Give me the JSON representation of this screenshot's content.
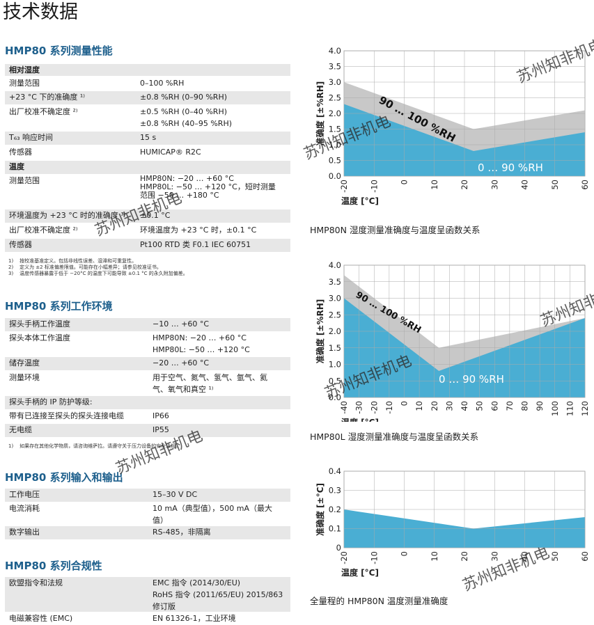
{
  "page_title": "技术数据",
  "sections": {
    "performance": {
      "title": "HMP80 系列测量性能",
      "rh_head": "相对湿度",
      "rh_range_k": "测量范围",
      "rh_range_v": "0–100 %RH",
      "rh_acc_k": "+23 °C 下的准确度 ¹⁾",
      "rh_acc_v": "±0.8 %RH (0–90 %RH)",
      "rh_cal_k": "出厂校准不确定度 ²⁾",
      "rh_cal_v": "±0.5 %RH (0–40 %RH)\n±0.8 %RH (40–95 %RH)",
      "rh_t63_k": "T₆₃ 响应时间",
      "rh_t63_v": "15 s",
      "rh_sensor_k": "传感器",
      "rh_sensor_v": "HUMICAP® R2C",
      "t_head": "温度",
      "t_range_k": "测量范围",
      "t_range_v": "HMP80N: −20 … +60 °C\nHMP80L: −50 … +120 °C，短时测量\n范围 −50 … +180 °C",
      "t_acc_k": "环境温度为 +23 °C 时的准确度 ³⁾",
      "t_acc_v": "±0.1 °C",
      "t_cal_k": "出厂校准不确定度 ²⁾",
      "t_cal_v": "环境温度为 +23 °C 时，±0.1 °C",
      "t_sensor_k": "传感器",
      "t_sensor_v": "Pt100 RTD 类 F0.1 IEC 60751",
      "notes": "1)    按校准基准定义。包括非线性误差、湿滞和可重复性。\n2)    定义为 ±2 标准偏差限值。可能存在小幅差异；请参见校准证书。\n3)    温度传感器暴露于低于 −20°C 的温度下可能导致 ±0.1 °C 的永久附加偏差。"
    },
    "environment": {
      "title": "HMP80 系列工作环境",
      "handle_k": "探头手柄工作温度",
      "handle_v": "−10 … +60 °C",
      "body_k": "探头本体工作温度",
      "body_v": "HMP80N: −20 … +60 °C\nHMP80L: −50 … +120 °C",
      "storage_k": "储存温度",
      "storage_v": "−20 … +60 °C",
      "env_k": "测量环境",
      "env_v": "用于空气、氮气、氢气、氩气、氦\n气、氧气和真空 ¹⁾",
      "ip_k": "探头手柄的 IP 防护等级:",
      "ip_cable_k": "带有已连接至探头的探头连接电缆",
      "ip_cable_v": "IP66",
      "ip_nocable_k": "无电缆",
      "ip_nocable_v": "IP55",
      "note": "1)    如果存在其他化学物质，请咨询维萨拉。请遵守关于压力设备的安全法规。"
    },
    "io": {
      "title": "HMP80 系列输入和输出",
      "voltage_k": "工作电压",
      "voltage_v": "15–30 V DC",
      "current_k": "电流消耗",
      "current_v": "10 mA（典型值），500 mA（最大\n值）",
      "digital_k": "数字输出",
      "digital_v": "RS-485，非隔离"
    },
    "compliance": {
      "title": "HMP80 系列合规性",
      "eu_k": "欧盟指令和法规",
      "eu_v": "EMC 指令 (2014/30/EU)\nRoHS 指令 (2011/65/EU) 2015/863\n修订版",
      "emc_k": "电磁兼容性 (EMC)",
      "emc_v": "EN 61326-1，工业环境"
    }
  },
  "chart_data": [
    {
      "type": "area",
      "caption": "HMP80N 湿度测量准确度与温度呈函数关系",
      "xlabel": "温度 [°C]",
      "ylabel": "准确度 [±%RH]",
      "xlim": [
        -20,
        60
      ],
      "ylim": [
        0,
        4.0
      ],
      "xticks": [
        -20,
        -10,
        0,
        10,
        20,
        30,
        40,
        50,
        60
      ],
      "yticks": [
        "0.0",
        "0.5",
        "1.0",
        "1.5",
        "2.0",
        "2.5",
        "3.0",
        "3.5",
        "4.0"
      ],
      "grid": true,
      "series": [
        {
          "name": "90 … 100 %RH",
          "color": "#c8c8c8",
          "x": [
            -20,
            23,
            60
          ],
          "y": [
            3.0,
            1.5,
            2.1
          ]
        },
        {
          "name": "0 … 90 %RH",
          "color": "#4aaed3",
          "x": [
            -20,
            23,
            60
          ],
          "y": [
            2.3,
            0.8,
            1.4
          ]
        }
      ]
    },
    {
      "type": "area",
      "caption": "HMP80L 湿度测量准确度与温度呈函数关系",
      "xlabel": "温度 [°C]",
      "ylabel": "准确度 [±%RH]",
      "xlim": [
        -40,
        120
      ],
      "ylim": [
        0,
        4.0
      ],
      "xticks": [
        -40,
        -30,
        -20,
        -10,
        0,
        10,
        20,
        30,
        40,
        50,
        60,
        70,
        80,
        90,
        100,
        110,
        120
      ],
      "yticks": [
        "0.0",
        "0.5",
        "1.0",
        "1.5",
        "2.0",
        "2.5",
        "3.0",
        "3.5",
        "4.0"
      ],
      "grid": true,
      "series": [
        {
          "name": "90 … 100 %RH",
          "color": "#c8c8c8",
          "x": [
            -40,
            23,
            120
          ],
          "y": [
            3.7,
            1.5,
            2.4
          ]
        },
        {
          "name": "0 … 90 %RH",
          "color": "#4aaed3",
          "x": [
            -40,
            23,
            120
          ],
          "y": [
            3.0,
            0.8,
            2.4
          ]
        }
      ]
    },
    {
      "type": "area",
      "caption": "全量程的 HMP80N 温度测量准确度",
      "xlabel": "温度 [°C]",
      "ylabel": "准确度 [±°C]",
      "xlim": [
        -20,
        60
      ],
      "ylim": [
        0,
        0.4
      ],
      "xticks": [
        -20,
        -10,
        0,
        10,
        20,
        30,
        40,
        50,
        60
      ],
      "yticks": [
        "0",
        "0.1",
        "0.2",
        "0.3",
        "0.4"
      ],
      "grid": true,
      "series": [
        {
          "name": "",
          "color": "#4aaed3",
          "x": [
            -20,
            23,
            60
          ],
          "y": [
            0.2,
            0.1,
            0.16
          ]
        }
      ]
    }
  ],
  "watermark": "苏州知非机电",
  "colors": {
    "accent": "#1d5f8c",
    "fill_blue": "#4aaed3",
    "fill_gray": "#c8c8c8",
    "row_shade": "#e7e7e7"
  }
}
